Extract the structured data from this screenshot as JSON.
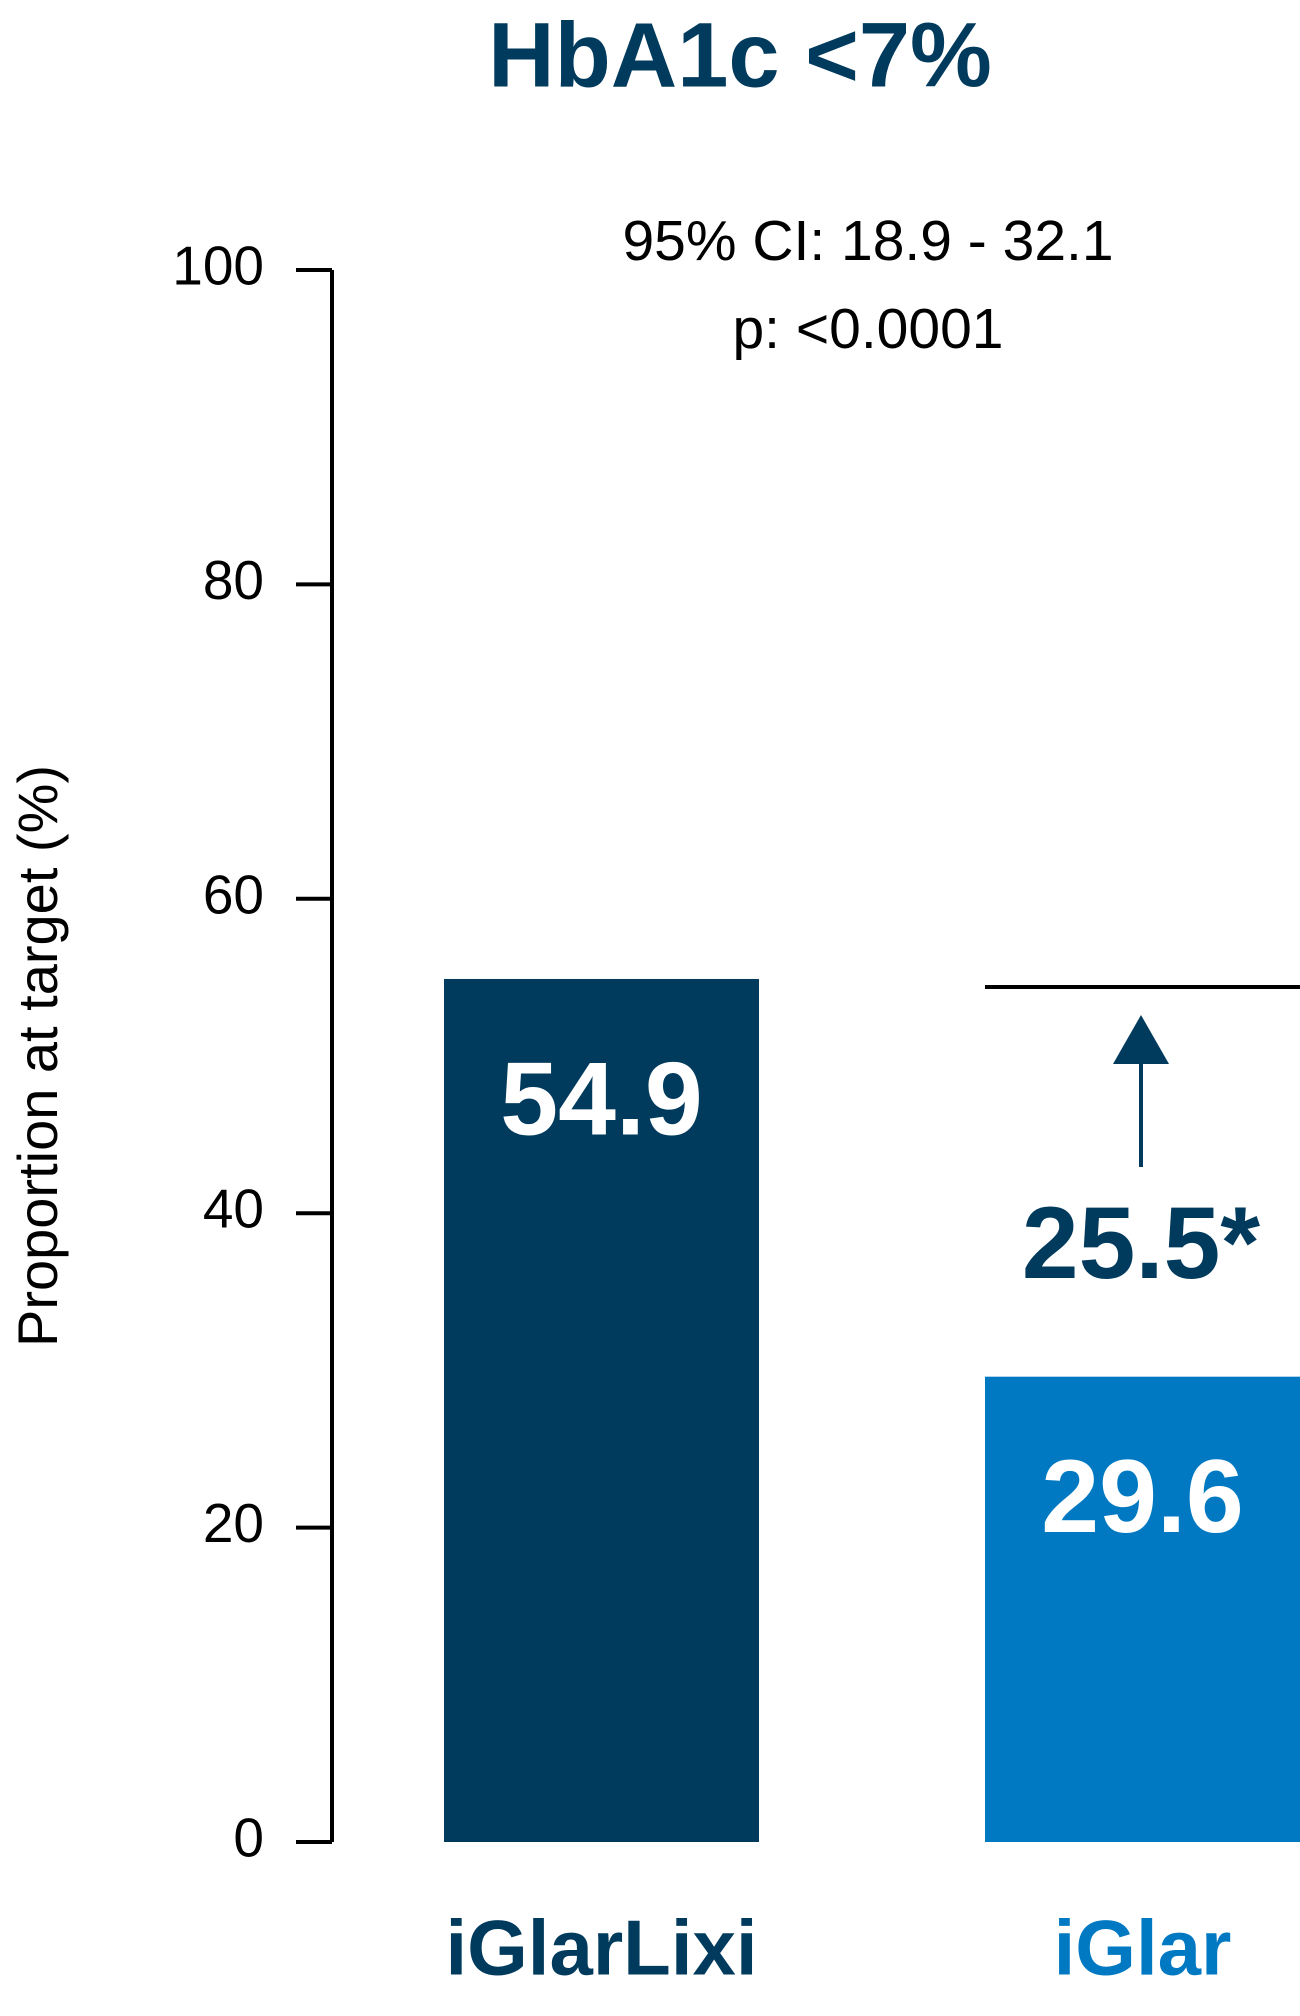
{
  "chart_data": {
    "type": "bar",
    "title": "HbA1c <7%",
    "y_label": "Proportion at target (%)",
    "categories": [
      "iGlarLixi",
      "iGlar"
    ],
    "values": [
      54.9,
      29.6
    ],
    "colors": [
      "#003a5d",
      "#0079c2"
    ],
    "ylim": [
      0,
      100
    ],
    "yticks": [
      0,
      20,
      40,
      60,
      80,
      100
    ],
    "annotations": {
      "difference": "25.5*",
      "ci": "95% CI: 18.9 - 32.1",
      "p": "p: <0.0001"
    }
  }
}
